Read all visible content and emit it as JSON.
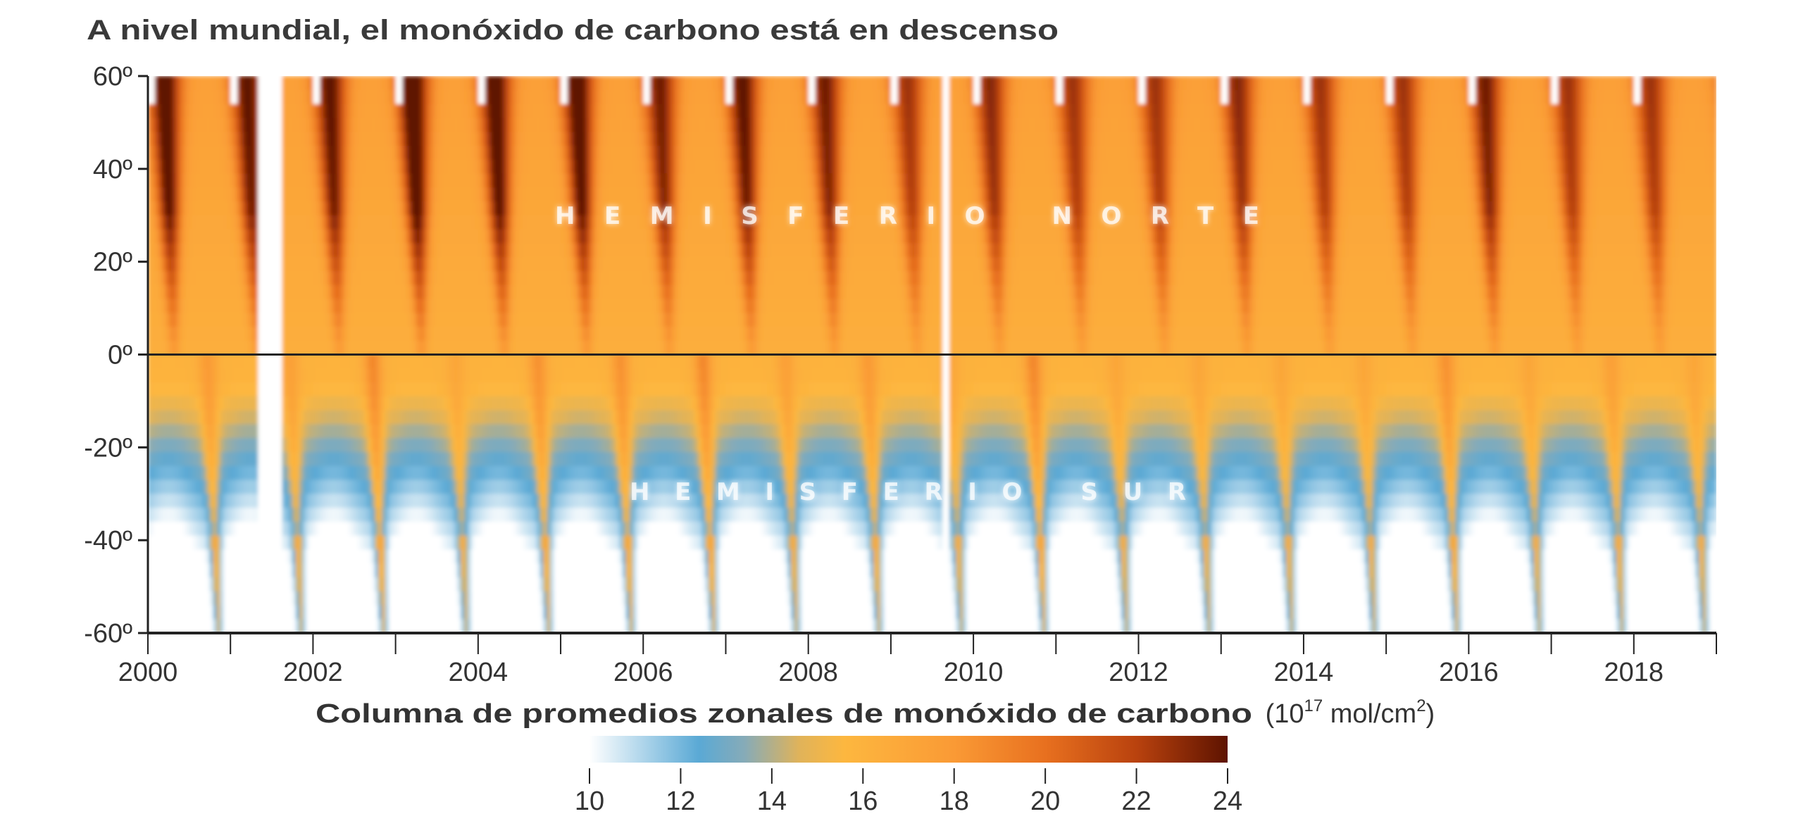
{
  "chart_data": {
    "type": "heatmap",
    "title": "A nivel mundial, el monóxido de carbono está en descenso",
    "xlabel": "",
    "ylabel": "",
    "xlim": [
      2000,
      2019
    ],
    "ylim": [
      -60,
      60
    ],
    "x_ticks": [
      "2000",
      "2002",
      "2004",
      "2006",
      "2008",
      "2010",
      "2012",
      "2014",
      "2016",
      "2018"
    ],
    "x_tick_values": [
      2000,
      2002,
      2004,
      2006,
      2008,
      2010,
      2012,
      2014,
      2016,
      2018
    ],
    "y_ticks": [
      "60º",
      "40º",
      "20º",
      "0º",
      "-20º",
      "-40º",
      "-60º"
    ],
    "y_tick_values": [
      60,
      40,
      20,
      0,
      -20,
      -40,
      -60
    ],
    "reference_line_lat": 0,
    "annotations": {
      "north": "HEMISFERIO NORTE",
      "south": "HEMISFERIO SUR"
    },
    "years": [
      2000,
      2001,
      2002,
      2003,
      2004,
      2005,
      2006,
      2007,
      2008,
      2009,
      2010,
      2011,
      2012,
      2013,
      2014,
      2015,
      2016,
      2017,
      2018
    ],
    "nh_seasonal_peak": [
      23.5,
      23,
      23,
      24,
      23.5,
      23.5,
      22.5,
      23,
      22.5,
      21.5,
      22,
      21.5,
      21.5,
      22,
      21.5,
      21.5,
      22.5,
      21.5,
      21.5
    ],
    "sh_burning_peak": [
      18,
      17.5,
      19,
      17,
      18.5,
      18.5,
      19,
      17.5,
      18,
      17,
      19,
      17,
      17,
      17,
      17,
      18.5,
      17,
      17.5,
      17
    ],
    "missing_periods": [
      [
        2001.33,
        2001.62
      ],
      [
        2009.62,
        2009.72
      ]
    ],
    "colorbar": {
      "label_bold": "Columna de promedios zonales de monóxido de carbono",
      "unit_open": "(10",
      "unit_exp": "17",
      "unit_mid": " mol/cm",
      "unit_exp2": "2",
      "unit_close": ")",
      "range": [
        10,
        24
      ],
      "ticks": [
        "10",
        "12",
        "14",
        "16",
        "18",
        "20",
        "22",
        "24"
      ],
      "tick_values": [
        10,
        12,
        14,
        16,
        18,
        20,
        22,
        24
      ],
      "stops": [
        {
          "v": 10,
          "c": "#ffffff"
        },
        {
          "v": 12.4,
          "c": "#5aa9d5"
        },
        {
          "v": 13.4,
          "c": "#86abb8"
        },
        {
          "v": 14.6,
          "c": "#e0b35a"
        },
        {
          "v": 15.6,
          "c": "#fdb73f"
        },
        {
          "v": 18,
          "c": "#fa9a35"
        },
        {
          "v": 20,
          "c": "#e8701f"
        },
        {
          "v": 22,
          "c": "#b9420e"
        },
        {
          "v": 24,
          "c": "#5e1300"
        }
      ]
    }
  }
}
